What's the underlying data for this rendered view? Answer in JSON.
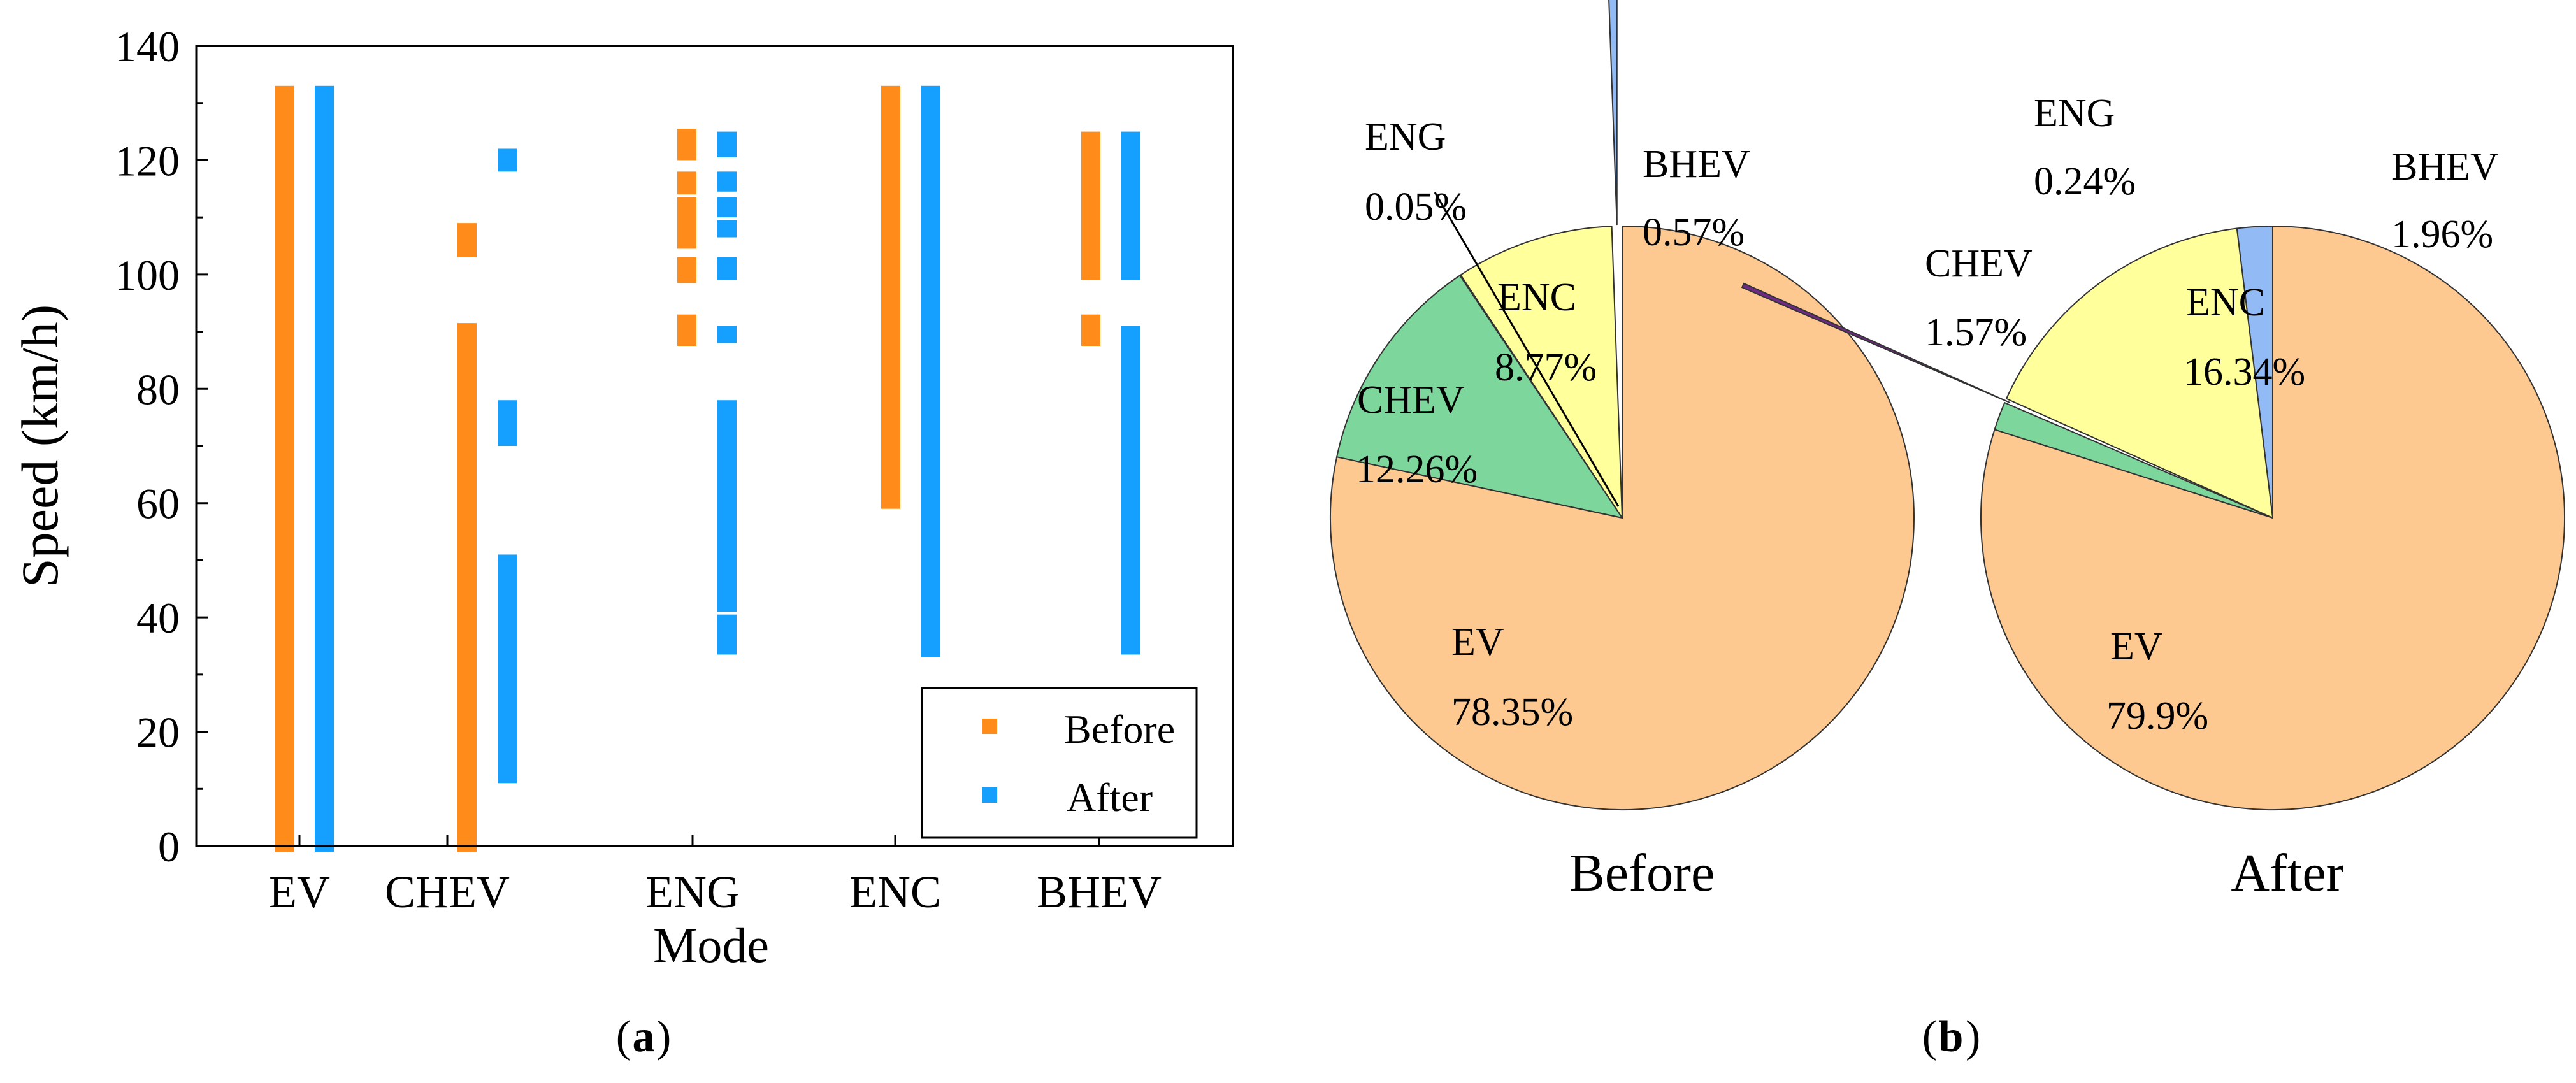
{
  "chart_data": [
    {
      "type": "range_bar",
      "panel_label": "a",
      "xlabel": "Mode",
      "ylabel": "Speed (km/h)",
      "ylim": [
        0,
        140
      ],
      "yticks": [
        0,
        20,
        40,
        60,
        80,
        100,
        120,
        140
      ],
      "categories": [
        "EV",
        "CHEV",
        "ENG",
        "ENC",
        "BHEV"
      ],
      "grid": false,
      "legend_position": "bottom-right",
      "series": [
        {
          "name": "Before",
          "color": "#ff8c1a",
          "segments": [
            [
              [
                -1,
                133
              ]
            ],
            [
              [
                -1,
                91.5
              ],
              [
                103,
                109
              ]
            ],
            [
              [
                87.5,
                93
              ],
              [
                98.5,
                103
              ],
              [
                104.5,
                113.5
              ],
              [
                114,
                118
              ],
              [
                120,
                125.5
              ]
            ],
            [
              [
                59,
                133
              ]
            ],
            [
              [
                87.5,
                93
              ],
              [
                99,
                125
              ]
            ]
          ]
        },
        {
          "name": "After",
          "color": "#15a0ff",
          "segments": [
            [
              [
                -1,
                133
              ]
            ],
            [
              [
                11,
                51
              ],
              [
                70,
                78
              ],
              [
                118,
                122
              ]
            ],
            [
              [
                33.5,
                40.5
              ],
              [
                41,
                78
              ],
              [
                88,
                91
              ],
              [
                99,
                103
              ],
              [
                106.5,
                109.5
              ],
              [
                110,
                113.5
              ],
              [
                114.5,
                118
              ],
              [
                120.5,
                125
              ]
            ],
            [
              [
                33,
                133
              ]
            ],
            [
              [
                33.5,
                91
              ],
              [
                99,
                125
              ]
            ]
          ]
        }
      ]
    },
    {
      "type": "pie",
      "panel_label": "b",
      "title": "Before",
      "slices": [
        {
          "label": "EV",
          "value": 78.35,
          "value_label": "78.35%",
          "color": "#fdc991"
        },
        {
          "label": "CHEV",
          "value": 12.26,
          "value_label": "12.26%",
          "color": "#7dd69b"
        },
        {
          "label": "ENG",
          "value": 0.05,
          "value_label": "0.05%",
          "color": "#6f2a83"
        },
        {
          "label": "ENC",
          "value": 8.77,
          "value_label": "8.77%",
          "color": "#ffff9c"
        },
        {
          "label": "BHEV",
          "value": 0.57,
          "value_label": "0.57%",
          "color": "#92baf4"
        }
      ]
    },
    {
      "type": "pie",
      "panel_label": "b",
      "title": "After",
      "slices": [
        {
          "label": "EV",
          "value": 79.9,
          "value_label": "79.9%",
          "color": "#fdc991"
        },
        {
          "label": "CHEV",
          "value": 1.57,
          "value_label": "1.57%",
          "color": "#7dd69b"
        },
        {
          "label": "ENG",
          "value": 0.24,
          "value_label": "0.24%",
          "color": "#6f2a83"
        },
        {
          "label": "ENC",
          "value": 16.34,
          "value_label": "16.34%",
          "color": "#ffff9c"
        },
        {
          "label": "BHEV",
          "value": 1.96,
          "value_label": "1.96%",
          "color": "#92baf4"
        }
      ]
    }
  ],
  "captions": {
    "a": "a",
    "b": "b"
  }
}
